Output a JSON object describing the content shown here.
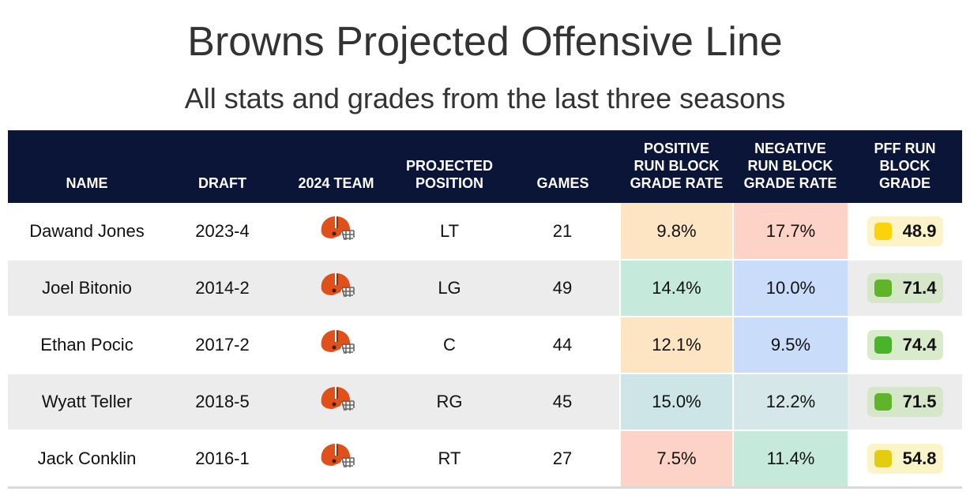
{
  "title": "Browns Projected Offensive Line",
  "subtitle": "All stats and grades from the last three seasons",
  "headers": {
    "name": "NAME",
    "draft": "DRAFT",
    "team": "2024 TEAM",
    "position_l1": "PROJECTED",
    "position_l2": "POSITION",
    "games": "GAMES",
    "pos_l1": "POSITIVE",
    "pos_l2": "RUN BLOCK",
    "pos_l3": "GRADE RATE",
    "neg_l1": "NEGATIVE",
    "neg_l2": "RUN BLOCK",
    "neg_l3": "GRADE RATE",
    "pff_l1": "PFF RUN",
    "pff_l2": "BLOCK",
    "pff_l3": "GRADE"
  },
  "team_icon": "cleveland-browns-helmet-icon",
  "colors": {
    "header_bg": "#0b1538",
    "row_alt": "#ececec"
  },
  "rows": [
    {
      "name": "Dawand Jones",
      "draft": "2023-4",
      "position": "LT",
      "games": "21",
      "pos_rate": "9.8%",
      "pos_color": "#fde4c3",
      "neg_rate": "17.7%",
      "neg_color": "#fdd3c7",
      "grade": "48.9",
      "grade_bg": "#fdf3c8",
      "grade_dot": "#fcd20a"
    },
    {
      "name": "Joel Bitonio",
      "draft": "2014-2",
      "position": "LG",
      "games": "49",
      "pos_rate": "14.4%",
      "pos_color": "#c5e9da",
      "neg_rate": "10.0%",
      "neg_color": "#c9dcfa",
      "grade": "71.4",
      "grade_bg": "#d6e7c9",
      "grade_dot": "#5fb42a"
    },
    {
      "name": "Ethan Pocic",
      "draft": "2017-2",
      "position": "C",
      "games": "44",
      "pos_rate": "12.1%",
      "pos_color": "#fde4c3",
      "neg_rate": "9.5%",
      "neg_color": "#c9dcfa",
      "grade": "74.4",
      "grade_bg": "#d8eccb",
      "grade_dot": "#49b42a"
    },
    {
      "name": "Wyatt Teller",
      "draft": "2018-5",
      "position": "RG",
      "games": "45",
      "pos_rate": "15.0%",
      "pos_color": "#cde5e6",
      "neg_rate": "12.2%",
      "neg_color": "#d6e7ea",
      "grade": "71.5",
      "grade_bg": "#d6e7c9",
      "grade_dot": "#5fb42a"
    },
    {
      "name": "Jack Conklin",
      "draft": "2016-1",
      "position": "RT",
      "games": "27",
      "pos_rate": "7.5%",
      "pos_color": "#fdd3c7",
      "neg_rate": "11.4%",
      "neg_color": "#c5e9da",
      "grade": "54.8",
      "grade_bg": "#fbf4c6",
      "grade_dot": "#e3cd10"
    }
  ]
}
